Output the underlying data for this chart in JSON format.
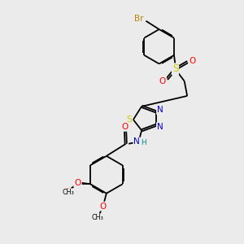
{
  "background_color": "#ebebeb",
  "bond_color": "#000000",
  "atom_colors": {
    "Br": "#b8860b",
    "S": "#cccc00",
    "O": "#ff0000",
    "N": "#0000cd",
    "H": "#008b8b",
    "C": "#000000"
  },
  "figsize": [
    3.0,
    3.0
  ],
  "dpi": 100
}
